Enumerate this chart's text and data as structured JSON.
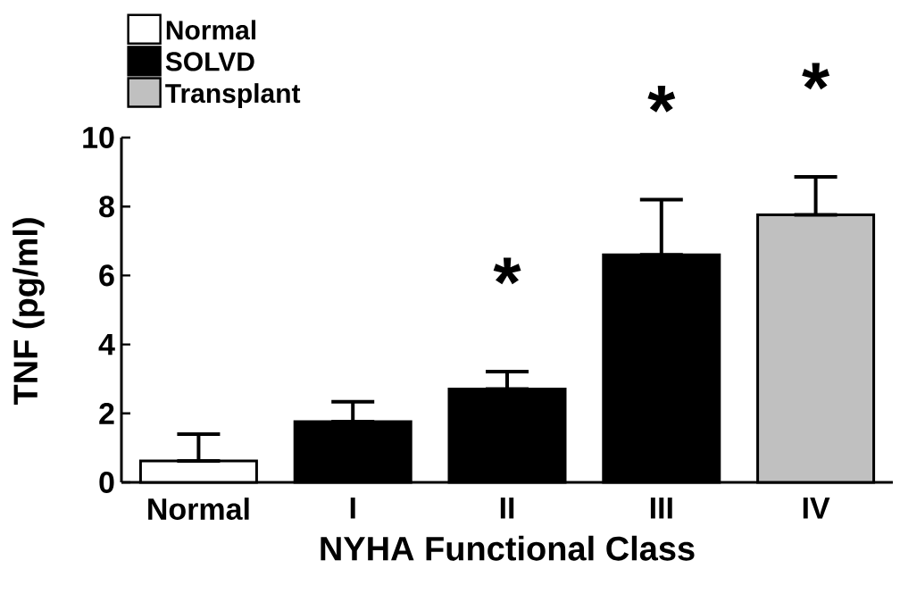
{
  "chart_data": {
    "type": "bar",
    "xlabel": "NYHA Functional Class",
    "ylabel": "TNF  (pg/ml)",
    "categories": [
      "Normal",
      "I",
      "II",
      "III",
      "IV"
    ],
    "series": [
      {
        "name": "Normal",
        "color": "#ffffff",
        "values": [
          0.62,
          null,
          null,
          null,
          null
        ],
        "errors": [
          [
            0.62,
            1.4
          ],
          null,
          null,
          null,
          null
        ]
      },
      {
        "name": "SOLVD",
        "color": "#000000",
        "values": [
          null,
          1.76,
          2.71,
          6.6,
          null
        ],
        "errors": [
          null,
          [
            1.76,
            2.34
          ],
          [
            2.71,
            3.21
          ],
          [
            6.6,
            8.2
          ],
          null
        ]
      },
      {
        "name": "Transplant",
        "color": "#c0c0c0",
        "values": [
          null,
          null,
          null,
          null,
          7.76
        ],
        "errors": [
          null,
          null,
          null,
          null,
          [
            7.76,
            8.86
          ]
        ]
      }
    ],
    "ylim": [
      0,
      10
    ],
    "yticks": [
      0,
      2,
      4,
      6,
      8,
      10
    ],
    "legend": "top left",
    "grid": false,
    "annotations": [
      "*",
      "*",
      "*"
    ]
  }
}
